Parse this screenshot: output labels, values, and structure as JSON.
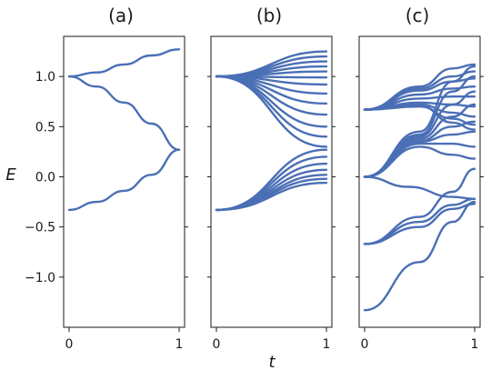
{
  "chart_data": [
    {
      "type": "line",
      "title": "(a)",
      "xlim": [
        0,
        1
      ],
      "ylim": [
        -1.5,
        1.4
      ],
      "xticks": [
        0,
        1
      ],
      "yticks": [
        1.0,
        0.5,
        0.0,
        -0.5,
        -1.0
      ],
      "ytick_labels": [
        "1.0",
        "0.5",
        "0.0",
        "−0.5",
        "−1.0"
      ],
      "ylabel": "E",
      "series": [
        {
          "x": [
            0,
            0.25,
            0.5,
            0.75,
            1
          ],
          "y": [
            1.0,
            1.04,
            1.12,
            1.21,
            1.27
          ]
        },
        {
          "x": [
            0,
            0.25,
            0.5,
            0.75,
            1
          ],
          "y": [
            1.0,
            0.9,
            0.74,
            0.53,
            0.27
          ]
        },
        {
          "x": [
            0,
            0.25,
            0.5,
            0.75,
            1
          ],
          "y": [
            -0.33,
            -0.25,
            -0.14,
            0.02,
            0.27
          ]
        }
      ]
    },
    {
      "type": "line",
      "title": "(b)",
      "xlim": [
        0,
        1
      ],
      "ylim": [
        -1.5,
        1.4
      ],
      "xticks": [
        0,
        1
      ],
      "xlabel": "t",
      "series": [
        {
          "x": [
            0,
            1
          ],
          "y": [
            1.0,
            1.25
          ]
        },
        {
          "x": [
            0,
            1
          ],
          "y": [
            1.0,
            1.2
          ]
        },
        {
          "x": [
            0,
            1
          ],
          "y": [
            1.0,
            1.15
          ]
        },
        {
          "x": [
            0,
            1
          ],
          "y": [
            1.0,
            1.1
          ]
        },
        {
          "x": [
            0,
            1
          ],
          "y": [
            1.0,
            1.05
          ]
        },
        {
          "x": [
            0,
            1
          ],
          "y": [
            1.0,
            0.99
          ]
        },
        {
          "x": [
            0,
            1
          ],
          "y": [
            1.0,
            0.92
          ]
        },
        {
          "x": [
            0,
            1
          ],
          "y": [
            1.0,
            0.83
          ]
        },
        {
          "x": [
            0,
            1
          ],
          "y": [
            1.0,
            0.73
          ]
        },
        {
          "x": [
            0,
            1
          ],
          "y": [
            1.0,
            0.62
          ]
        },
        {
          "x": [
            0,
            1
          ],
          "y": [
            1.0,
            0.5
          ]
        },
        {
          "x": [
            0,
            1
          ],
          "y": [
            1.0,
            0.4
          ]
        },
        {
          "x": [
            0,
            1
          ],
          "y": [
            1.0,
            0.3
          ]
        },
        {
          "x": [
            0,
            1
          ],
          "y": [
            -0.33,
            0.27
          ]
        },
        {
          "x": [
            0,
            1
          ],
          "y": [
            -0.33,
            0.2
          ]
        },
        {
          "x": [
            0,
            1
          ],
          "y": [
            -0.33,
            0.13
          ]
        },
        {
          "x": [
            0,
            1
          ],
          "y": [
            -0.33,
            0.07
          ]
        },
        {
          "x": [
            0,
            1
          ],
          "y": [
            -0.33,
            0.02
          ]
        },
        {
          "x": [
            0,
            1
          ],
          "y": [
            -0.33,
            -0.02
          ]
        },
        {
          "x": [
            0,
            1
          ],
          "y": [
            -0.33,
            -0.06
          ]
        }
      ]
    },
    {
      "type": "line",
      "title": "(c)",
      "xlim": [
        0,
        1
      ],
      "ylim": [
        -1.5,
        1.4
      ],
      "xticks": [
        0,
        1
      ],
      "series": [
        {
          "x": [
            0,
            0.5,
            0.8,
            1
          ],
          "y": [
            0.67,
            0.9,
            1.08,
            1.12
          ]
        },
        {
          "x": [
            0,
            0.5,
            0.8,
            1
          ],
          "y": [
            0.67,
            0.88,
            1.0,
            1.05
          ]
        },
        {
          "x": [
            0,
            0.5,
            0.8,
            1
          ],
          "y": [
            0.67,
            0.86,
            0.95,
            0.98
          ]
        },
        {
          "x": [
            0,
            0.5,
            0.8,
            1
          ],
          "y": [
            0.67,
            0.82,
            0.88,
            0.9
          ]
        },
        {
          "x": [
            0,
            0.5,
            0.8,
            1
          ],
          "y": [
            0.67,
            0.78,
            0.8,
            0.8
          ]
        },
        {
          "x": [
            0,
            0.5,
            0.8,
            1
          ],
          "y": [
            0.67,
            0.74,
            0.72,
            0.7
          ]
        },
        {
          "x": [
            0,
            0.5,
            0.8,
            1
          ],
          "y": [
            0.67,
            0.72,
            0.64,
            0.6
          ]
        },
        {
          "x": [
            0,
            0.5,
            0.8,
            1
          ],
          "y": [
            0.67,
            0.7,
            0.58,
            0.52
          ]
        },
        {
          "x": [
            0,
            0.5,
            0.8,
            1
          ],
          "y": [
            0.67,
            0.71,
            0.54,
            0.47
          ]
        },
        {
          "x": [
            0,
            0.5,
            0.8,
            1
          ],
          "y": [
            0.0,
            0.45,
            0.95,
            1.1
          ]
        },
        {
          "x": [
            0,
            0.5,
            0.8,
            1
          ],
          "y": [
            0.0,
            0.42,
            0.85,
            1.0
          ]
        },
        {
          "x": [
            0,
            0.5,
            0.8,
            1
          ],
          "y": [
            0.0,
            0.4,
            0.72,
            0.85
          ]
        },
        {
          "x": [
            0,
            0.5,
            0.8,
            1
          ],
          "y": [
            0.0,
            0.38,
            0.6,
            0.72
          ]
        },
        {
          "x": [
            0,
            0.5,
            0.8,
            1
          ],
          "y": [
            0.0,
            0.36,
            0.5,
            0.55
          ]
        },
        {
          "x": [
            0,
            0.5,
            0.8,
            1
          ],
          "y": [
            0.0,
            0.35,
            0.42,
            0.45
          ]
        },
        {
          "x": [
            0,
            0.5,
            0.8,
            1
          ],
          "y": [
            0.0,
            0.33,
            0.33,
            0.3
          ]
        },
        {
          "x": [
            0,
            0.5,
            0.8,
            1
          ],
          "y": [
            0.0,
            0.3,
            0.22,
            0.18
          ]
        },
        {
          "x": [
            0,
            0.4,
            0.8,
            1
          ],
          "y": [
            0.0,
            -0.1,
            -0.2,
            -0.22
          ]
        },
        {
          "x": [
            0,
            0.5,
            0.8,
            1
          ],
          "y": [
            -0.67,
            -0.4,
            -0.15,
            0.08
          ]
        },
        {
          "x": [
            0,
            0.5,
            0.8,
            1
          ],
          "y": [
            -0.67,
            -0.45,
            -0.28,
            -0.22
          ]
        },
        {
          "x": [
            0,
            0.5,
            0.8,
            1
          ],
          "y": [
            -0.67,
            -0.5,
            -0.32,
            -0.27
          ]
        },
        {
          "x": [
            0,
            0.5,
            0.8,
            1
          ],
          "y": [
            -1.33,
            -0.85,
            -0.45,
            -0.25
          ]
        }
      ]
    }
  ],
  "colors": {
    "series": "#4a6fb5",
    "axes": "#1a1a1a"
  }
}
